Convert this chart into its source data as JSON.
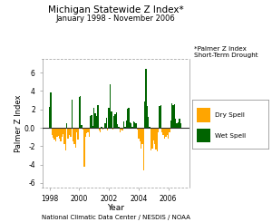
{
  "title": "Michigan Statewide Z Index*",
  "subtitle": "January 1998 - November 2006",
  "xlabel": "Year",
  "ylabel": "Palmer Z Index",
  "footnote": "National Climatic Data Center / NESDIS / NOAA",
  "note_text": "*Palmer Z Index\nShort-Term Drought",
  "ylim": [
    -6.5,
    7.5
  ],
  "yticks": [
    -6.0,
    -4.0,
    -2.0,
    0.0,
    2.0,
    4.0,
    6.0
  ],
  "legend_dry": "Dry Spell",
  "legend_wet": "Wet Spell",
  "color_dry": "#FFA500",
  "color_wet": "#006400",
  "values": [
    2.3,
    3.8,
    -0.8,
    -1.1,
    -1.3,
    -1.5,
    -1.0,
    -0.9,
    -1.2,
    -1.5,
    -1.0,
    -0.7,
    -1.8,
    -2.5,
    0.5,
    -1.2,
    -0.8,
    -1.0,
    3.1,
    -1.5,
    -1.8,
    -2.2,
    -0.5,
    -1.3,
    3.4,
    3.5,
    0.3,
    -0.2,
    -4.2,
    -1.0,
    -0.6,
    -0.5,
    -1.0,
    1.3,
    1.4,
    0.2,
    2.2,
    1.6,
    1.3,
    2.5,
    -0.3,
    -0.5,
    0.1,
    -0.2,
    -0.1,
    0.5,
    1.1,
    -0.3,
    2.2,
    4.7,
    1.8,
    -0.2,
    1.3,
    1.5,
    1.7,
    0.4,
    0.1,
    -0.5,
    -0.2,
    -0.3,
    0.7,
    0.1,
    0.8,
    2.1,
    2.2,
    0.6,
    0.5,
    0.1,
    0.7,
    0.6,
    0.5,
    -0.2,
    -1.2,
    -1.5,
    -2.3,
    -1.8,
    -4.6,
    2.9,
    6.4,
    2.4,
    1.2,
    0.1,
    -2.5,
    -2.3,
    -1.4,
    -1.8,
    -2.4,
    -2.6,
    -0.5,
    2.4,
    2.5,
    -0.5,
    -0.8,
    -1.2,
    -1.0,
    -0.8,
    -1.2,
    -0.5,
    0.8,
    2.7,
    2.5,
    2.6,
    1.0,
    0.5,
    0.6,
    1.0,
    0.5
  ],
  "xticks": [
    1998,
    2000,
    2002,
    2004,
    2006
  ],
  "xlim": [
    1997.5,
    2007.4
  ]
}
